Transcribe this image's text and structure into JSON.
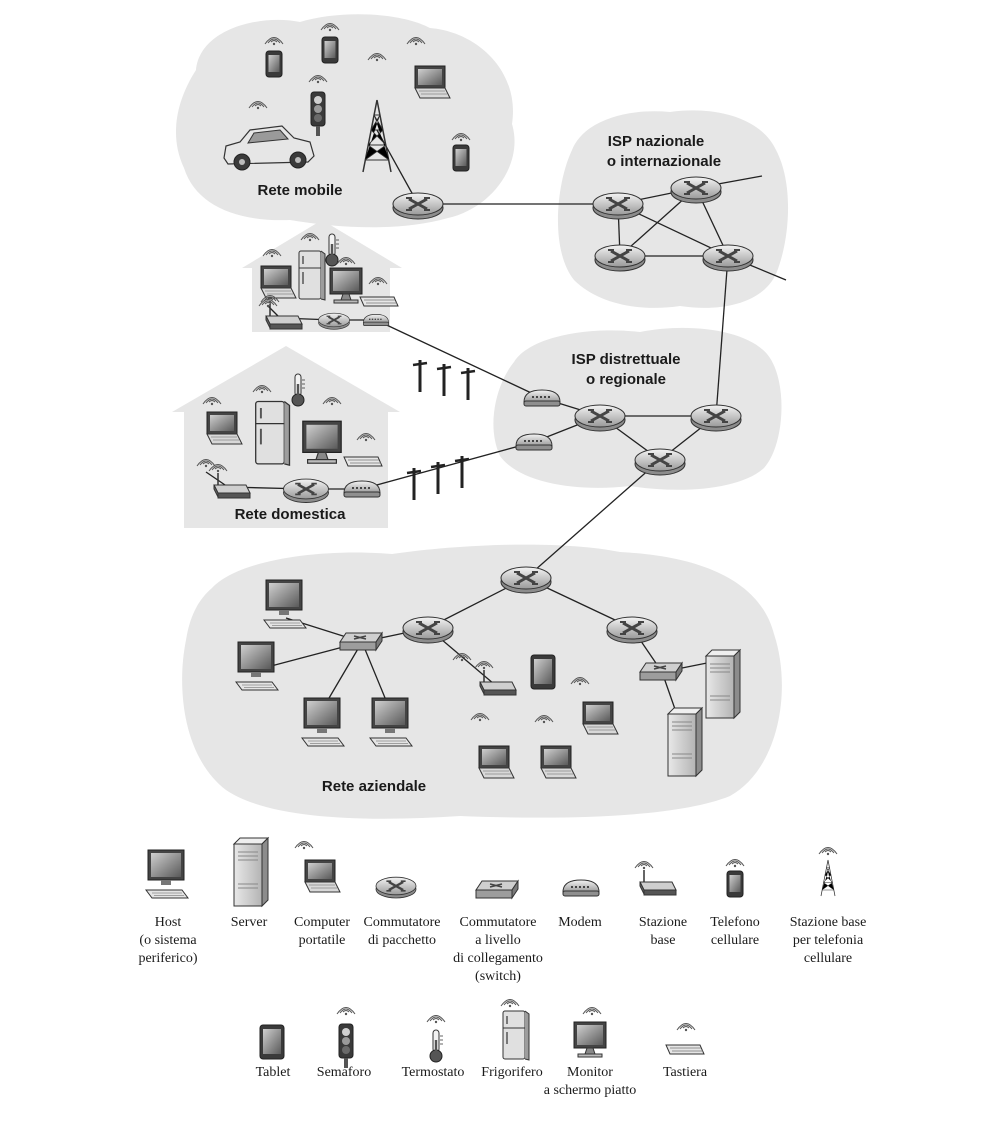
{
  "regions": {
    "mobile": "Rete mobile",
    "national_isp_line1": "ISP nazionale",
    "national_isp_line2": "o internazionale",
    "regional_isp_line1": "ISP distrettuale",
    "regional_isp_line2": "o regionale",
    "home": "Rete domestica",
    "enterprise": "Rete aziendale"
  },
  "legend": {
    "host": [
      "Host",
      "(o sistema",
      "periferico)"
    ],
    "server": [
      "Server"
    ],
    "laptop": [
      "Computer",
      "portatile"
    ],
    "router": [
      "Commutatore",
      "di pacchetto"
    ],
    "switch": [
      "Commutatore",
      "a livello",
      "di collegamento",
      "(switch)"
    ],
    "modem": [
      "Modem"
    ],
    "base_station": [
      "Stazione",
      "base"
    ],
    "cell_phone": [
      "Telefono",
      "cellulare"
    ],
    "cell_tower": [
      "Stazione base",
      "per telefonia",
      "cellulare"
    ],
    "tablet": [
      "Tablet"
    ],
    "traffic_light": [
      "Semaforo"
    ],
    "thermostat": [
      "Termostato"
    ],
    "fridge": [
      "Frigorifero"
    ],
    "monitor": [
      "Monitor",
      "a schermo piatto"
    ],
    "keyboard": [
      "Tastiera"
    ]
  }
}
